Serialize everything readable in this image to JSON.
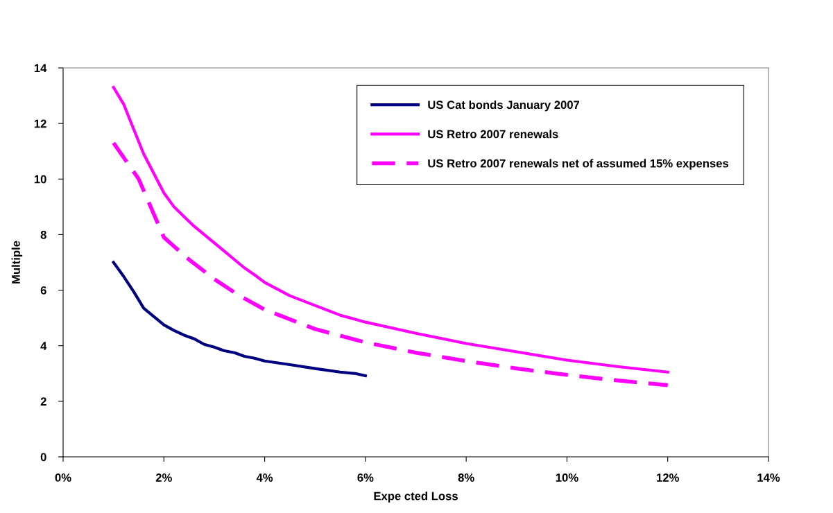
{
  "chart_data": {
    "type": "line",
    "xlabel": "Expe cted Loss",
    "ylabel": "Multiple",
    "xlim": [
      0,
      14
    ],
    "xticks": [
      {
        "value": 0,
        "label": "0%"
      },
      {
        "value": 2,
        "label": "2%"
      },
      {
        "value": 4,
        "label": "4%"
      },
      {
        "value": 6,
        "label": "6%"
      },
      {
        "value": 8,
        "label": "8%"
      },
      {
        "value": 10,
        "label": "10%"
      },
      {
        "value": 12,
        "label": "12%"
      },
      {
        "value": 14,
        "label": "14%"
      }
    ],
    "ylim": [
      0,
      14
    ],
    "yticks": [
      0,
      2,
      4,
      6,
      8,
      10,
      12,
      14
    ],
    "grid": false,
    "legend": "top right",
    "marker": "none",
    "series": [
      {
        "name": "US Cat bonds January 2007",
        "color": "#000080",
        "line_style": "solid",
        "x": [
          1,
          1.2,
          1.4,
          1.6,
          1.8,
          2,
          2.2,
          2.4,
          2.6,
          2.8,
          3,
          3.2,
          3.4,
          3.6,
          3.8,
          4,
          4.5,
          5,
          5.5,
          5.8,
          6
        ],
        "values": [
          7.0,
          6.5,
          5.95,
          5.35,
          5.05,
          4.75,
          4.55,
          4.38,
          4.25,
          4.05,
          3.95,
          3.82,
          3.75,
          3.62,
          3.55,
          3.45,
          3.32,
          3.18,
          3.05,
          3.0,
          2.92
        ]
      },
      {
        "name": "US Retro 2007 renewals",
        "color": "#ff00ff",
        "line_style": "solid",
        "x": [
          1,
          1.2,
          1.4,
          1.6,
          1.8,
          2,
          2.2,
          2.4,
          2.6,
          2.8,
          3,
          3.2,
          3.4,
          3.6,
          3.8,
          4,
          4.5,
          5,
          5.5,
          6,
          7,
          8,
          9,
          10,
          11,
          12
        ],
        "values": [
          13.3,
          12.7,
          11.8,
          10.9,
          10.2,
          9.5,
          9.0,
          8.65,
          8.3,
          8.0,
          7.7,
          7.4,
          7.1,
          6.8,
          6.55,
          6.28,
          5.8,
          5.45,
          5.1,
          4.85,
          4.45,
          4.08,
          3.78,
          3.48,
          3.25,
          3.05
        ]
      },
      {
        "name": "US Retro 2007 renewals net of assumed 15% expenses",
        "color": "#ff00ff",
        "line_style": "dashed",
        "x": [
          1,
          1.5,
          2,
          2.5,
          3,
          3.5,
          4,
          5,
          6,
          7,
          8,
          9,
          10,
          11,
          12
        ],
        "values": [
          11.3,
          10.0,
          7.9,
          7.1,
          6.4,
          5.8,
          5.3,
          4.6,
          4.12,
          3.75,
          3.45,
          3.18,
          2.95,
          2.75,
          2.58
        ]
      }
    ]
  }
}
